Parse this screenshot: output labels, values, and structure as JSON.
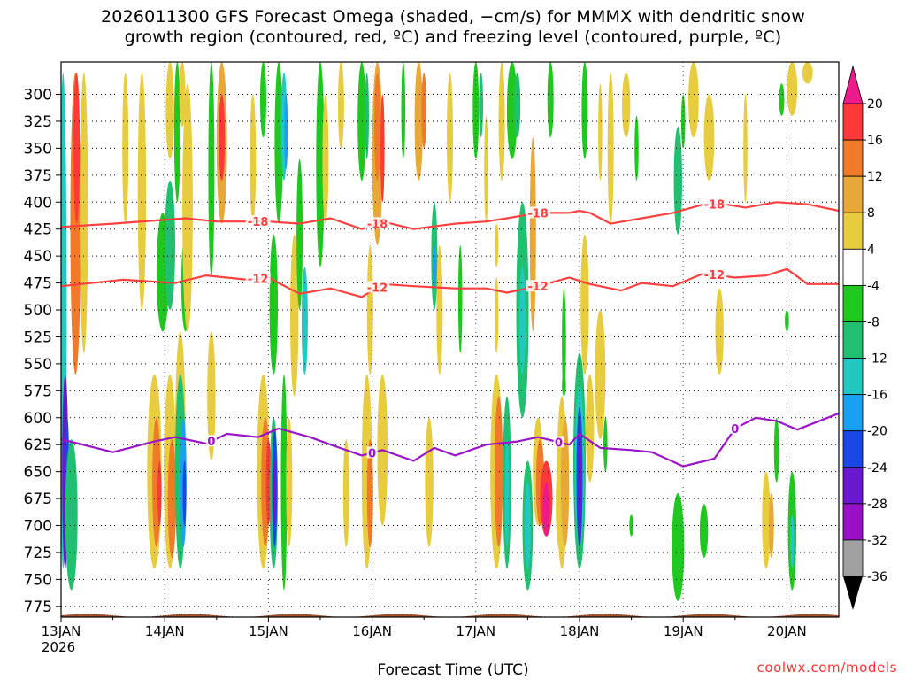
{
  "chart_data": {
    "type": "heatmap",
    "title_line1": "2026011300 GFS Forecast Omega (shaded, −cm/s) for MMMX with dendritic snow",
    "title_line2": "growth region (contoured, red, ºC) and freezing level (contoured, purple, ºC)",
    "xlabel": "Forecast Time (UTC)",
    "ylabel": "",
    "x_ticks": [
      "13JAN",
      "14JAN",
      "15JAN",
      "16JAN",
      "17JAN",
      "18JAN",
      "19JAN",
      "20JAN"
    ],
    "x_range_days": [
      0,
      7.5
    ],
    "year_label": "2026",
    "y_ticks": [
      300,
      325,
      350,
      375,
      400,
      425,
      450,
      475,
      500,
      525,
      550,
      575,
      600,
      625,
      650,
      675,
      700,
      725,
      750,
      775
    ],
    "y_range_hpa": [
      270,
      785
    ],
    "colorbar": {
      "labels": [
        "20",
        "16",
        "12",
        "8",
        "4",
        "-4",
        "-8",
        "-12",
        "-16",
        "-20",
        "-24",
        "-28",
        "-32",
        "-36"
      ],
      "colors": [
        "#ff3838",
        "#f07a2a",
        "#e8a838",
        "#e8cc40",
        "#ffffff",
        "#1ec81e",
        "#20c070",
        "#20c8c0",
        "#1aa0f0",
        "#1a46e6",
        "#6a18d0",
        "#9a10c8",
        "#a0a0a0"
      ],
      "top_arrow_color": "#ee1a8c",
      "bottom_arrow_color": "#000000"
    },
    "contours": [
      {
        "label": "-18",
        "color": "#ff4040",
        "x": [
          0,
          0.5,
          1.2,
          1.5,
          2.0,
          2.3,
          2.6,
          2.9,
          3.1,
          3.4,
          3.8,
          4.1,
          4.3,
          4.6,
          4.9,
          5.0,
          5.1,
          5.3,
          5.6,
          5.9,
          6.2,
          6.4,
          6.6,
          6.9,
          7.2,
          7.5
        ],
        "hpa": [
          423,
          420,
          415,
          418,
          418,
          420,
          415,
          425,
          418,
          425,
          420,
          418,
          415,
          410,
          410,
          408,
          410,
          420,
          415,
          410,
          402,
          402,
          405,
          400,
          402,
          408
        ]
      },
      {
        "label": "-12",
        "color": "#ff4040",
        "x": [
          0,
          0.6,
          1.1,
          1.4,
          1.8,
          2.0,
          2.3,
          2.6,
          2.9,
          3.1,
          3.4,
          3.8,
          4.1,
          4.3,
          4.6,
          4.9,
          5.1,
          5.4,
          5.6,
          5.9,
          6.2,
          6.5,
          6.8,
          7.0,
          7.2,
          7.5
        ],
        "hpa": [
          478,
          472,
          475,
          468,
          472,
          470,
          485,
          480,
          488,
          476,
          478,
          480,
          480,
          484,
          478,
          470,
          476,
          482,
          475,
          478,
          466,
          470,
          468,
          462,
          476,
          476
        ]
      },
      {
        "label": "0",
        "color": "#9a14c8",
        "x": [
          0,
          0.5,
          0.9,
          1.1,
          1.4,
          1.6,
          1.9,
          2.1,
          2.4,
          2.6,
          2.9,
          3.1,
          3.4,
          3.6,
          3.8,
          4.1,
          4.4,
          4.6,
          4.9,
          5.0,
          5.2,
          5.5,
          5.7,
          6.0,
          6.3,
          6.5,
          6.7,
          6.9,
          7.1,
          7.5
        ],
        "hpa": [
          620,
          632,
          622,
          618,
          624,
          615,
          618,
          610,
          618,
          625,
          635,
          630,
          640,
          628,
          635,
          625,
          622,
          618,
          625,
          615,
          628,
          630,
          632,
          645,
          638,
          610,
          600,
          603,
          611,
          596
        ]
      }
    ],
    "surface_color": "#a0522d",
    "surface_hpa": 777,
    "credit": "coolwx.com/models"
  }
}
